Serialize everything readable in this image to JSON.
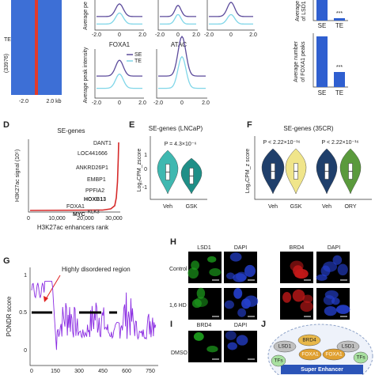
{
  "heatmap": {
    "row_label": "TE",
    "count": "(33976)",
    "x_start": "-2.0",
    "x_end": "2.0 kb"
  },
  "profiles": {
    "y_label_top": "Average pe",
    "y_label": "Average peak intensity",
    "x_ticks": [
      "-2.0",
      "0",
      "2.0"
    ],
    "labels": [
      "FOXA1",
      "ATAC"
    ],
    "legend": [
      "SE",
      "TE"
    ]
  },
  "bars_lsd1": {
    "y_label": [
      "Average",
      "of LSD1"
    ],
    "categories": [
      "SE",
      "TE"
    ],
    "significance": "***"
  },
  "bars_foxa1": {
    "y_label": [
      "Average number",
      "of FOXA1 peaks"
    ],
    "categories": [
      "SE",
      "TE"
    ],
    "significance": "***"
  },
  "panel_d": {
    "letter": "D",
    "title": "SE-genes",
    "y_label": "H3K27ac signal (10⁵)",
    "x_label": "H3K27ac enhancers rank",
    "x_ticks": [
      "0",
      "10,000",
      "20,000",
      "30,000"
    ],
    "genes": [
      "DANT1",
      "LOC441666",
      "ANKRD26P1",
      "EMBP1",
      "PPFIA2",
      "HOXB13",
      "FOXA1",
      "MYC",
      "KLK3"
    ]
  },
  "panel_e": {
    "letter": "E",
    "title": "SE-genes (LNCaP)",
    "p_value": "P = 4.3×10⁻⁶",
    "y_label": "Log₂CPM_zscore",
    "y_ticks": [
      "1",
      "0",
      "-1"
    ],
    "categories": [
      "Veh",
      "GSK"
    ]
  },
  "panel_f": {
    "letter": "F",
    "title": "SE-genes (35CR)",
    "p_values": [
      "P < 2.22×10⁻¹⁶",
      "P < 2.22×10⁻¹⁶"
    ],
    "y_label": "Log₂CPM_z score",
    "categories": [
      "Veh",
      "GSK",
      "Veh",
      "ORY"
    ]
  },
  "panel_g": {
    "letter": "G",
    "y_label": "PONDR score",
    "y_ticks": [
      "1",
      "0.5",
      "0"
    ],
    "x_ticks": [
      "0",
      "150",
      "300",
      "450",
      "600",
      "750"
    ],
    "annotation": "Highly disordered region"
  },
  "panel_h": {
    "letter": "H",
    "columns": [
      "LSD1",
      "DAPI",
      "BRD4",
      "DAPI"
    ],
    "rows": [
      "Control",
      "1,6 HD"
    ]
  },
  "panel_i": {
    "letter": "I",
    "columns": [
      "BRD4",
      "DAPI"
    ],
    "rows": [
      "DMSO"
    ]
  },
  "panel_j": {
    "letter": "J",
    "proteins": [
      "LSD1",
      "BRD4",
      "LSD1",
      "FOXA1",
      "FOXA1",
      "TFs",
      "TFs"
    ],
    "element": "Super Enhancer"
  }
}
